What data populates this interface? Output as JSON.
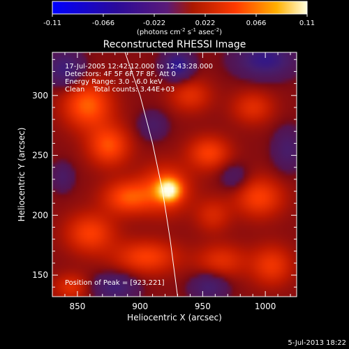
{
  "chart_data": {
    "type": "heatmap",
    "title": "Reconstructed RHESSI Image",
    "xlabel": "Heliocentric X (arcsec)",
    "ylabel": "Heliocentric Y (arcsec)",
    "xlim": [
      830,
      1025
    ],
    "ylim": [
      132,
      336
    ],
    "xticks": [
      850,
      900,
      950,
      1000
    ],
    "yticks": [
      150,
      200,
      250,
      300
    ],
    "grid": false,
    "colorbar": {
      "ticks": [
        "-0.11",
        "-0.066",
        "-0.022",
        "0.022",
        "0.066",
        "0.11"
      ],
      "range": [
        -0.11,
        0.11
      ],
      "unit_prefix": "(photons cm",
      "unit_sup1": "-2",
      "unit_mid": " s",
      "unit_sup2": "-1",
      "unit_mid2": " asec",
      "unit_sup3": "-2",
      "unit_suffix": ")"
    },
    "annotations": [
      "17-Jul-2005 12:42:12.000 to 12:43:28.000",
      "Detectors: 4F 5F 6F 7F 8F, Att 0",
      "Energy Range: 3.0 - 6.0 keV",
      "Clean    Total counts: 3.44E+03"
    ],
    "peak_label": "Position of Peak = [923,221]",
    "peak": {
      "x": 923,
      "y": 221,
      "value": 0.11
    },
    "limb_curve": [
      [
        888,
        336
      ],
      [
        900,
        300
      ],
      [
        910,
        260
      ],
      [
        918,
        220
      ],
      [
        924,
        180
      ],
      [
        930,
        132
      ]
    ],
    "blobs": [
      {
        "x": 923,
        "y": 221,
        "sx": 6,
        "sy": 6,
        "v": 0.08
      },
      {
        "x": 920,
        "y": 222,
        "sx": 14,
        "sy": 14,
        "v": 0.045
      },
      {
        "x": 858,
        "y": 292,
        "sx": 14,
        "sy": 14,
        "v": 0.05
      },
      {
        "x": 875,
        "y": 258,
        "sx": 12,
        "sy": 12,
        "v": 0.045
      },
      {
        "x": 890,
        "y": 215,
        "sx": 14,
        "sy": 10,
        "v": 0.045
      },
      {
        "x": 860,
        "y": 185,
        "sx": 14,
        "sy": 12,
        "v": 0.04
      },
      {
        "x": 905,
        "y": 165,
        "sx": 18,
        "sy": 10,
        "v": 0.04
      },
      {
        "x": 955,
        "y": 252,
        "sx": 12,
        "sy": 10,
        "v": 0.04
      },
      {
        "x": 940,
        "y": 300,
        "sx": 12,
        "sy": 10,
        "v": 0.03
      },
      {
        "x": 990,
        "y": 290,
        "sx": 12,
        "sy": 10,
        "v": 0.03
      },
      {
        "x": 995,
        "y": 215,
        "sx": 14,
        "sy": 12,
        "v": 0.04
      },
      {
        "x": 1005,
        "y": 158,
        "sx": 12,
        "sy": 12,
        "v": 0.035
      },
      {
        "x": 965,
        "y": 162,
        "sx": 14,
        "sy": 10,
        "v": 0.03
      },
      {
        "x": 845,
        "y": 140,
        "sx": 10,
        "sy": 8,
        "v": 0.03
      },
      {
        "x": 958,
        "y": 200,
        "sx": 10,
        "sy": 10,
        "v": 0.025
      },
      {
        "x": 930,
        "y": 325,
        "sx": 8,
        "sy": 8,
        "v": -0.07
      },
      {
        "x": 1000,
        "y": 330,
        "sx": 16,
        "sy": 10,
        "v": -0.06
      },
      {
        "x": 840,
        "y": 322,
        "sx": 10,
        "sy": 10,
        "v": -0.05
      },
      {
        "x": 880,
        "y": 140,
        "sx": 12,
        "sy": 8,
        "v": -0.045
      },
      {
        "x": 955,
        "y": 140,
        "sx": 10,
        "sy": 8,
        "v": -0.04
      },
      {
        "x": 910,
        "y": 275,
        "sx": 8,
        "sy": 8,
        "v": -0.03
      },
      {
        "x": 1018,
        "y": 255,
        "sx": 8,
        "sy": 12,
        "v": -0.035
      },
      {
        "x": 838,
        "y": 232,
        "sx": 6,
        "sy": 8,
        "v": -0.03
      },
      {
        "x": 975,
        "y": 232,
        "sx": 8,
        "sy": 8,
        "v": -0.025
      }
    ]
  },
  "footer": {
    "date": "5-Jul-2013 18:22"
  }
}
